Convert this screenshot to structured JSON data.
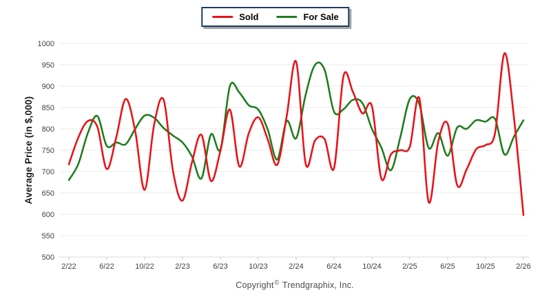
{
  "footer": {
    "copyright_prefix": "Copyright",
    "copyright_symbol": "©",
    "copyright_suffix": "Trendgraphix, Inc."
  },
  "colors": {
    "sold": "#e8131a",
    "for_sale": "#1e7d1e",
    "grid": "#ebebeb",
    "axis": "#d8d8d8",
    "tick": "#c9c9c9",
    "label_text": "#404040",
    "axis_title_text": "#1a1a1a",
    "legend_border": "#1c3a63"
  },
  "chart_data": {
    "type": "line",
    "title": "",
    "xlabel": "",
    "ylabel": "Average Price (in $,000)",
    "ylim": [
      500,
      1000
    ],
    "y_ticks": [
      500,
      550,
      600,
      650,
      700,
      750,
      800,
      850,
      900,
      950,
      1000
    ],
    "grid": "horizontal",
    "legend_position": "top-center",
    "line_style": "smooth-spline",
    "x": [
      "2/22",
      "3/22",
      "4/22",
      "5/22",
      "6/22",
      "7/22",
      "8/22",
      "9/22",
      "10/22",
      "11/22",
      "12/22",
      "1/23",
      "2/23",
      "3/23",
      "4/23",
      "5/23",
      "6/23",
      "7/23",
      "8/23",
      "9/23",
      "10/23",
      "11/23",
      "12/23",
      "1/24",
      "2/24",
      "3/24",
      "4/24",
      "5/24",
      "6/24",
      "7/24",
      "8/24",
      "9/24",
      "10/24",
      "11/24",
      "12/24",
      "1/25",
      "2/25",
      "3/25",
      "4/25",
      "5/25",
      "6/25",
      "7/25",
      "8/25",
      "9/25",
      "10/25",
      "11/25",
      "12/25",
      "1/26",
      "2/26"
    ],
    "x_tick_labels": [
      "2/22",
      "6/22",
      "10/22",
      "2/23",
      "6/23",
      "10/23",
      "2/24",
      "6/24",
      "10/24",
      "2/25",
      "6/25",
      "10/25",
      "2/26"
    ],
    "series": [
      {
        "name": "Sold",
        "color": "#e8131a",
        "values": [
          717,
          780,
          818,
          805,
          706,
          780,
          870,
          795,
          657,
          810,
          868,
          700,
          632,
          722,
          786,
          678,
          748,
          845,
          712,
          790,
          827,
          775,
          716,
          830,
          957,
          718,
          773,
          776,
          708,
          924,
          886,
          836,
          853,
          683,
          740,
          750,
          758,
          872,
          628,
          770,
          812,
          668,
          705,
          752,
          762,
          790,
          977,
          825,
          598
        ]
      },
      {
        "name": "For Sale",
        "color": "#1e7d1e",
        "values": [
          680,
          718,
          790,
          830,
          760,
          768,
          764,
          800,
          831,
          826,
          802,
          784,
          768,
          735,
          684,
          787,
          752,
          900,
          885,
          855,
          845,
          798,
          728,
          818,
          778,
          880,
          950,
          938,
          840,
          846,
          868,
          860,
          800,
          756,
          703,
          781,
          870,
          858,
          755,
          790,
          737,
          803,
          800,
          820,
          817,
          823,
          740,
          782,
          820
        ]
      }
    ]
  }
}
